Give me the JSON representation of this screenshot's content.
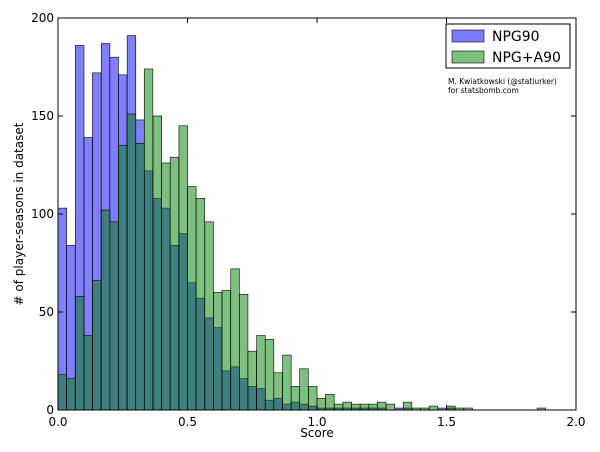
{
  "chart_data": {
    "type": "bar",
    "subtype": "overlaid-histogram",
    "xlabel": "Score",
    "ylabel": "# of player-seasons in dataset",
    "xlim": [
      0,
      2.0
    ],
    "ylim": [
      0,
      200
    ],
    "xticks": [
      "0.0",
      "0.5",
      "1.0",
      "1.5",
      "2.0"
    ],
    "yticks": [
      "0",
      "50",
      "100",
      "150",
      "200"
    ],
    "bin_width": 0.0333,
    "legend_position": "top-right",
    "annotation": [
      "M. Kwiatkowski (@statlurker)",
      "for statsbomb.com"
    ],
    "series": [
      {
        "name": "NPG90",
        "color": "#7b7bff",
        "bins": [
          [
            0.0,
            103
          ],
          [
            0.033,
            84
          ],
          [
            0.067,
            186
          ],
          [
            0.1,
            139
          ],
          [
            0.133,
            172
          ],
          [
            0.167,
            187
          ],
          [
            0.2,
            180
          ],
          [
            0.233,
            171
          ],
          [
            0.267,
            191
          ],
          [
            0.3,
            148
          ],
          [
            0.333,
            122
          ],
          [
            0.367,
            108
          ],
          [
            0.4,
            103
          ],
          [
            0.433,
            84
          ],
          [
            0.467,
            90
          ],
          [
            0.5,
            65
          ],
          [
            0.533,
            57
          ],
          [
            0.567,
            47
          ],
          [
            0.6,
            42
          ],
          [
            0.633,
            20
          ],
          [
            0.667,
            22
          ],
          [
            0.7,
            16
          ],
          [
            0.733,
            12
          ],
          [
            0.767,
            11
          ],
          [
            0.8,
            5
          ],
          [
            0.833,
            6
          ],
          [
            0.867,
            3
          ],
          [
            0.9,
            4
          ],
          [
            0.933,
            3
          ],
          [
            0.967,
            2
          ],
          [
            1.0,
            1
          ],
          [
            1.033,
            1
          ],
          [
            1.067,
            1
          ],
          [
            1.1,
            1
          ],
          [
            1.133,
            1
          ],
          [
            1.167,
            1
          ],
          [
            1.2,
            1
          ],
          [
            1.233,
            1
          ],
          [
            1.267,
            0
          ],
          [
            1.3,
            1
          ],
          [
            1.333,
            1
          ],
          [
            1.367,
            0
          ],
          [
            1.4,
            0
          ],
          [
            1.433,
            0
          ],
          [
            1.467,
            1
          ],
          [
            1.5,
            1
          ],
          [
            1.533,
            0
          ],
          [
            1.567,
            0
          ],
          [
            1.6,
            0
          ],
          [
            1.633,
            0
          ]
        ]
      },
      {
        "name": "NPG+A90",
        "color": "#7fbf7f",
        "bins": [
          [
            0.0,
            18
          ],
          [
            0.033,
            16
          ],
          [
            0.067,
            58
          ],
          [
            0.1,
            38
          ],
          [
            0.133,
            66
          ],
          [
            0.167,
            102
          ],
          [
            0.2,
            96
          ],
          [
            0.233,
            135
          ],
          [
            0.267,
            151
          ],
          [
            0.3,
            136
          ],
          [
            0.333,
            174
          ],
          [
            0.367,
            150
          ],
          [
            0.4,
            126
          ],
          [
            0.433,
            129
          ],
          [
            0.467,
            145
          ],
          [
            0.5,
            114
          ],
          [
            0.533,
            108
          ],
          [
            0.567,
            96
          ],
          [
            0.6,
            60
          ],
          [
            0.633,
            61
          ],
          [
            0.667,
            72
          ],
          [
            0.7,
            59
          ],
          [
            0.733,
            30
          ],
          [
            0.767,
            38
          ],
          [
            0.8,
            36
          ],
          [
            0.833,
            19
          ],
          [
            0.867,
            28
          ],
          [
            0.9,
            12
          ],
          [
            0.933,
            21
          ],
          [
            0.967,
            12
          ],
          [
            1.0,
            6
          ],
          [
            1.033,
            8
          ],
          [
            1.067,
            3
          ],
          [
            1.1,
            4
          ],
          [
            1.133,
            3
          ],
          [
            1.167,
            3
          ],
          [
            1.2,
            3
          ],
          [
            1.233,
            4
          ],
          [
            1.267,
            3
          ],
          [
            1.3,
            0
          ],
          [
            1.333,
            4
          ],
          [
            1.367,
            1
          ],
          [
            1.4,
            1
          ],
          [
            1.433,
            2
          ],
          [
            1.467,
            0
          ],
          [
            1.5,
            2
          ],
          [
            1.533,
            1
          ],
          [
            1.567,
            1
          ],
          [
            1.6,
            0
          ],
          [
            1.85,
            1
          ]
        ]
      }
    ]
  }
}
